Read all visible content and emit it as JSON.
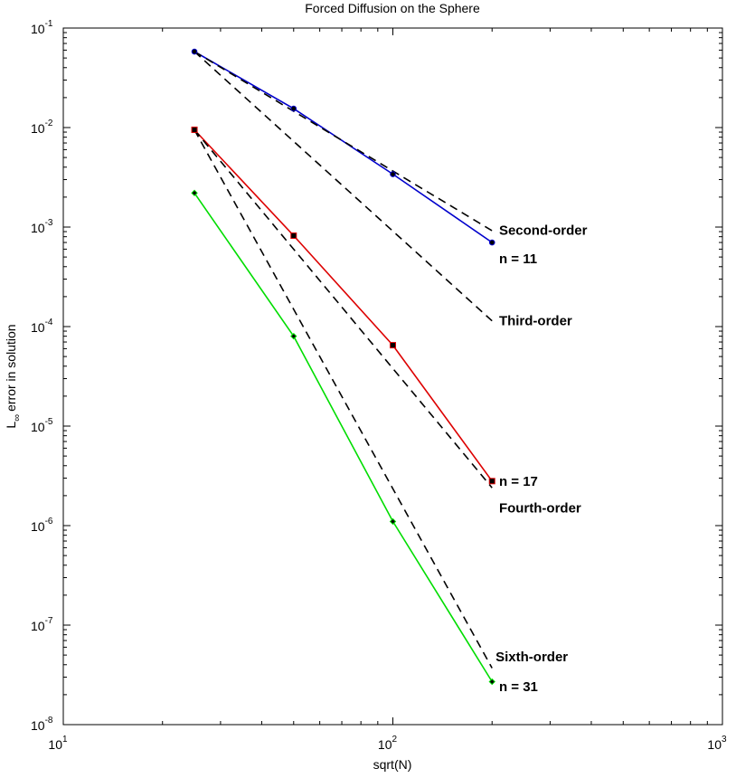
{
  "chart_data": {
    "type": "line",
    "title": "Forced Diffusion on the Sphere",
    "xlabel": "sqrt(N)",
    "ylabel": {
      "main": "L",
      "subscript": "∞",
      "rest": "error in solution"
    },
    "xscale": "log",
    "yscale": "log",
    "xlim": [
      10,
      1000
    ],
    "ylim": [
      1e-08,
      0.1
    ],
    "grid": false,
    "x_ticks": [
      {
        "base": "10",
        "exp": "1",
        "value": 10
      },
      {
        "base": "10",
        "exp": "2",
        "value": 100
      },
      {
        "base": "10",
        "exp": "3",
        "value": 1000
      }
    ],
    "y_ticks": [
      {
        "base": "10",
        "exp": "-8",
        "value": 1e-08
      },
      {
        "base": "10",
        "exp": "-7",
        "value": 1e-07
      },
      {
        "base": "10",
        "exp": "-6",
        "value": 1e-06
      },
      {
        "base": "10",
        "exp": "-5",
        "value": 1e-05
      },
      {
        "base": "10",
        "exp": "-4",
        "value": 0.0001
      },
      {
        "base": "10",
        "exp": "-3",
        "value": 0.001
      },
      {
        "base": "10",
        "exp": "-2",
        "value": 0.01
      },
      {
        "base": "10",
        "exp": "-1",
        "value": 0.1
      }
    ],
    "series": [
      {
        "color": "#0000cc",
        "style": "solid",
        "marker": "circle",
        "x": [
          25,
          50,
          100,
          200
        ],
        "y": [
          0.058,
          0.0155,
          0.0034,
          0.0007
        ]
      },
      {
        "color": "#dd0000",
        "style": "solid",
        "marker": "square",
        "x": [
          25,
          50,
          100,
          200
        ],
        "y": [
          0.0095,
          0.00082,
          6.5e-05,
          2.8e-06
        ]
      },
      {
        "color": "#00dd00",
        "style": "solid",
        "marker": "diamond",
        "x": [
          25,
          50,
          100,
          200
        ],
        "y": [
          0.0022,
          8e-05,
          1.1e-06,
          2.7e-08
        ]
      },
      {
        "color": "#000000",
        "style": "dashed",
        "marker": "none",
        "x": [
          25,
          200
        ],
        "y": [
          0.058,
          0.00092
        ]
      },
      {
        "color": "#000000",
        "style": "dashed",
        "marker": "none",
        "x": [
          25,
          200
        ],
        "y": [
          0.058,
          0.000114
        ]
      },
      {
        "color": "#000000",
        "style": "dashed",
        "marker": "none",
        "x": [
          25,
          200
        ],
        "y": [
          0.0095,
          2.4e-06
        ]
      },
      {
        "color": "#000000",
        "style": "dashed",
        "marker": "none",
        "x": [
          25,
          200
        ],
        "y": [
          0.0095,
          3.7e-08
        ]
      }
    ],
    "annotations": [
      {
        "text": "Second-order",
        "x": 210,
        "y": 0.00093
      },
      {
        "text": "n = 11",
        "x": 210,
        "y": 0.00048
      },
      {
        "text": "Third-order",
        "x": 210,
        "y": 0.000114
      },
      {
        "text": "n = 17",
        "x": 210,
        "y": 2.8e-06
      },
      {
        "text": "Fourth-order",
        "x": 210,
        "y": 1.5e-06
      },
      {
        "text": "Sixth-order",
        "x": 205,
        "y": 4.8e-08
      },
      {
        "text": "n = 31",
        "x": 210,
        "y": 2.4e-08
      }
    ]
  }
}
